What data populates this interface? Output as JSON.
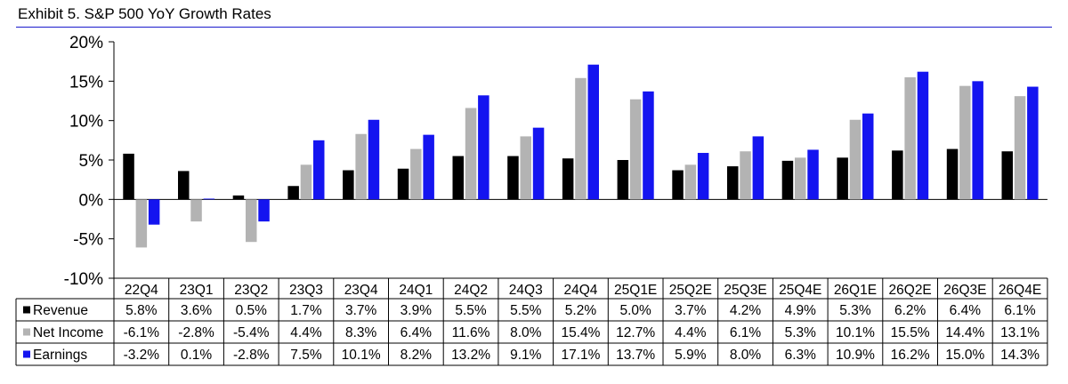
{
  "title": "Exhibit 5.  S&P 500 YoY Growth Rates",
  "chart_data": {
    "type": "bar",
    "title": "Exhibit 5.  S&P 500 YoY Growth Rates",
    "categories": [
      "22Q4",
      "23Q1",
      "23Q2",
      "23Q3",
      "23Q4",
      "24Q1",
      "24Q2",
      "24Q3",
      "24Q4",
      "25Q1E",
      "25Q2E",
      "25Q3E",
      "25Q4E",
      "26Q1E",
      "26Q2E",
      "26Q3E",
      "26Q4E"
    ],
    "series": [
      {
        "name": "Revenue",
        "color": "#000000",
        "values": [
          5.8,
          3.6,
          0.5,
          1.7,
          3.7,
          3.9,
          5.5,
          5.5,
          5.2,
          5.0,
          3.7,
          4.2,
          4.9,
          5.3,
          6.2,
          6.4,
          6.1
        ],
        "labels": [
          "5.8%",
          "3.6%",
          "0.5%",
          "1.7%",
          "3.7%",
          "3.9%",
          "5.5%",
          "5.5%",
          "5.2%",
          "5.0%",
          "3.7%",
          "4.2%",
          "4.9%",
          "5.3%",
          "6.2%",
          "6.4%",
          "6.1%"
        ]
      },
      {
        "name": "Net Income",
        "color": "#b3b3b3",
        "values": [
          -6.1,
          -2.8,
          -5.4,
          4.4,
          8.3,
          6.4,
          11.6,
          8.0,
          15.4,
          12.7,
          4.4,
          6.1,
          5.3,
          10.1,
          15.5,
          14.4,
          13.1
        ],
        "labels": [
          "-6.1%",
          "-2.8%",
          "-5.4%",
          "4.4%",
          "8.3%",
          "6.4%",
          "11.6%",
          "8.0%",
          "15.4%",
          "12.7%",
          "4.4%",
          "6.1%",
          "5.3%",
          "10.1%",
          "15.5%",
          "14.4%",
          "13.1%"
        ]
      },
      {
        "name": "Earnings",
        "color": "#1414f0",
        "values": [
          -3.2,
          0.1,
          -2.8,
          7.5,
          10.1,
          8.2,
          13.2,
          9.1,
          17.1,
          13.7,
          5.9,
          8.0,
          6.3,
          10.9,
          16.2,
          15.0,
          14.3
        ],
        "labels": [
          "-3.2%",
          "0.1%",
          "-2.8%",
          "7.5%",
          "10.1%",
          "8.2%",
          "13.2%",
          "9.1%",
          "17.1%",
          "13.7%",
          "5.9%",
          "8.0%",
          "6.3%",
          "10.9%",
          "16.2%",
          "15.0%",
          "14.3%"
        ]
      }
    ],
    "ylim": [
      -10,
      20
    ],
    "yticks": [
      20,
      15,
      10,
      5,
      0,
      -5,
      -10
    ],
    "ytick_labels": [
      "20%",
      "15%",
      "10%",
      "5%",
      "0%",
      "-5%",
      "-10%"
    ],
    "legend": "data table below chart"
  }
}
